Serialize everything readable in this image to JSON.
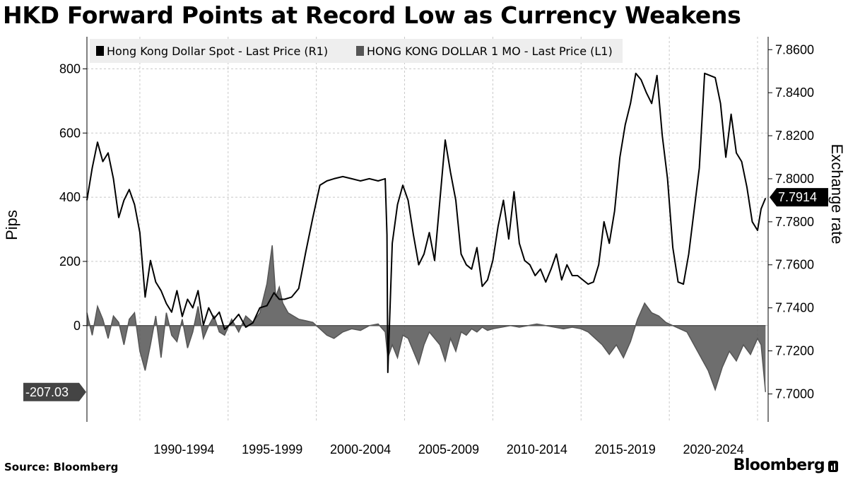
{
  "title": "HKD Forward Points at Record Low as Currency Weakens",
  "source": "Source: Bloomberg",
  "logo": "Bloomberg",
  "colors": {
    "spot": "#000000",
    "forward": "#555555",
    "grid": "#c8c8c8",
    "legend_bg": "#eeeeee"
  },
  "chart_data": {
    "type": "line",
    "legend": [
      {
        "name": "Hong Kong Dollar Spot - Last Price (R1)",
        "color": "#000000"
      },
      {
        "name": "HONG KONG DOLLAR 1 MO - Last Price (L1)",
        "color": "#555555"
      }
    ],
    "legend_position": "top-left",
    "grid": true,
    "x_range": [
      1987.0,
      2025.6
    ],
    "x_ticks": [
      {
        "label": "1990-1994",
        "start": 1990,
        "end": 1995
      },
      {
        "label": "1995-1999",
        "start": 1995,
        "end": 2000
      },
      {
        "label": "2000-2004",
        "start": 2000,
        "end": 2005
      },
      {
        "label": "2005-2009",
        "start": 2005,
        "end": 2010
      },
      {
        "label": "2010-2014",
        "start": 2010,
        "end": 2015
      },
      {
        "label": "2015-2019",
        "start": 2015,
        "end": 2020
      },
      {
        "label": "2020-2024",
        "start": 2020,
        "end": 2025
      }
    ],
    "left_axis": {
      "label": "Pips",
      "range": [
        -300,
        900
      ],
      "ticks": [
        "0",
        "200",
        "400",
        "600",
        "800"
      ],
      "tick_values": [
        0,
        200,
        400,
        600,
        800
      ]
    },
    "right_axis": {
      "label": "Exchange rate",
      "range": [
        7.687,
        7.866
      ],
      "ticks": [
        "7.7000",
        "7.7200",
        "7.7400",
        "7.7600",
        "7.7800",
        "7.8000",
        "7.8200",
        "7.8400",
        "7.8600"
      ],
      "tick_values": [
        7.7,
        7.72,
        7.74,
        7.76,
        7.78,
        7.8,
        7.82,
        7.84,
        7.86
      ]
    },
    "last_value_labels": {
      "spot": "7.7914",
      "forward": "-207.03"
    },
    "last_values": {
      "spot": 7.7914,
      "forward": -207.03
    },
    "series": [
      {
        "name": "Hong Kong Dollar Spot - Last Price (R1)",
        "axis": "right",
        "x": [
          1987.0,
          1987.3,
          1987.6,
          1987.9,
          1988.2,
          1988.5,
          1988.8,
          1989.1,
          1989.4,
          1989.7,
          1990.0,
          1990.3,
          1990.6,
          1990.9,
          1991.2,
          1991.5,
          1991.8,
          1992.1,
          1992.4,
          1992.7,
          1993.0,
          1993.3,
          1993.6,
          1993.9,
          1994.2,
          1994.5,
          1994.8,
          1995.2,
          1995.6,
          1996.0,
          1996.4,
          1996.8,
          1997.2,
          1997.6,
          1997.9,
          1998.2,
          1998.6,
          1999.0,
          1999.4,
          1999.8,
          2000.2,
          2000.6,
          2001.0,
          2001.5,
          2002.0,
          2002.5,
          2003.0,
          2003.5,
          2003.9,
          2004.0,
          2004.05,
          2004.3,
          2004.6,
          2004.9,
          2005.2,
          2005.5,
          2005.8,
          2006.1,
          2006.4,
          2006.7,
          2007.0,
          2007.3,
          2007.6,
          2007.9,
          2008.2,
          2008.5,
          2008.8,
          2009.1,
          2009.4,
          2009.7,
          2010.0,
          2010.3,
          2010.6,
          2010.9,
          2011.2,
          2011.5,
          2011.8,
          2012.1,
          2012.4,
          2012.7,
          2013.0,
          2013.3,
          2013.6,
          2013.9,
          2014.2,
          2014.5,
          2014.8,
          2015.1,
          2015.4,
          2015.7,
          2016.0,
          2016.3,
          2016.6,
          2016.9,
          2017.2,
          2017.5,
          2017.8,
          2018.1,
          2018.4,
          2018.7,
          2019.0,
          2019.3,
          2019.6,
          2019.9,
          2020.2,
          2020.5,
          2020.8,
          2021.1,
          2021.4,
          2021.7,
          2022.0,
          2022.3,
          2022.6,
          2022.9,
          2023.2,
          2023.5,
          2023.8,
          2024.1,
          2024.4,
          2024.7,
          2025.0,
          2025.2,
          2025.45
        ],
        "y": [
          7.79,
          7.805,
          7.817,
          7.808,
          7.812,
          7.8,
          7.782,
          7.79,
          7.795,
          7.788,
          7.775,
          7.745,
          7.762,
          7.752,
          7.748,
          7.742,
          7.738,
          7.748,
          7.736,
          7.744,
          7.74,
          7.748,
          7.732,
          7.74,
          7.735,
          7.738,
          7.73,
          7.733,
          7.737,
          7.731,
          7.733,
          7.74,
          7.741,
          7.747,
          7.744,
          7.744,
          7.745,
          7.749,
          7.766,
          7.782,
          7.797,
          7.799,
          7.8,
          7.801,
          7.8,
          7.799,
          7.8,
          7.799,
          7.8,
          7.774,
          7.71,
          7.77,
          7.788,
          7.797,
          7.79,
          7.774,
          7.76,
          7.765,
          7.775,
          7.762,
          7.79,
          7.818,
          7.803,
          7.79,
          7.765,
          7.76,
          7.758,
          7.768,
          7.75,
          7.753,
          7.762,
          7.778,
          7.79,
          7.772,
          7.794,
          7.77,
          7.762,
          7.76,
          7.755,
          7.758,
          7.752,
          7.758,
          7.765,
          7.753,
          7.76,
          7.755,
          7.755,
          7.753,
          7.751,
          7.752,
          7.76,
          7.78,
          7.77,
          7.785,
          7.81,
          7.825,
          7.835,
          7.849,
          7.846,
          7.84,
          7.835,
          7.848,
          7.82,
          7.8,
          7.768,
          7.752,
          7.751,
          7.765,
          7.785,
          7.805,
          7.849,
          7.848,
          7.847,
          7.835,
          7.81,
          7.83,
          7.812,
          7.808,
          7.796,
          7.78,
          7.776,
          7.786,
          7.791
        ]
      },
      {
        "name": "HONG KONG DOLLAR 1 MO - Last Price (L1)",
        "axis": "left",
        "x": [
          1987.0,
          1987.3,
          1987.6,
          1987.9,
          1988.2,
          1988.5,
          1988.8,
          1989.1,
          1989.4,
          1989.7,
          1990.0,
          1990.3,
          1990.6,
          1990.9,
          1991.2,
          1991.5,
          1991.8,
          1992.1,
          1992.4,
          1992.7,
          1993.0,
          1993.3,
          1993.6,
          1993.9,
          1994.2,
          1994.5,
          1994.8,
          1995.2,
          1995.6,
          1996.0,
          1996.4,
          1996.8,
          1997.2,
          1997.5,
          1997.7,
          1997.9,
          1998.1,
          1998.4,
          1998.7,
          1999.0,
          1999.4,
          1999.8,
          2000.2,
          2000.6,
          2001.0,
          2001.5,
          2002.0,
          2002.5,
          2003.0,
          2003.5,
          2003.9,
          2004.05,
          2004.3,
          2004.6,
          2004.9,
          2005.2,
          2005.5,
          2005.8,
          2006.1,
          2006.4,
          2006.7,
          2007.0,
          2007.3,
          2007.6,
          2007.9,
          2008.2,
          2008.5,
          2008.8,
          2009.1,
          2009.4,
          2009.7,
          2010.0,
          2010.5,
          2011.0,
          2011.5,
          2012.0,
          2012.5,
          2013.0,
          2013.5,
          2014.0,
          2014.5,
          2015.0,
          2015.4,
          2015.8,
          2016.2,
          2016.6,
          2017.0,
          2017.4,
          2017.8,
          2018.2,
          2018.6,
          2019.0,
          2019.4,
          2019.8,
          2020.2,
          2020.6,
          2021.0,
          2021.4,
          2021.8,
          2022.2,
          2022.6,
          2023.0,
          2023.4,
          2023.8,
          2024.2,
          2024.6,
          2025.0,
          2025.2,
          2025.45
        ],
        "y": [
          40,
          -30,
          60,
          20,
          -40,
          30,
          10,
          -60,
          20,
          40,
          -80,
          -140,
          -60,
          30,
          -100,
          40,
          -30,
          -50,
          20,
          -70,
          -20,
          60,
          -40,
          0,
          30,
          -20,
          -30,
          20,
          -20,
          30,
          10,
          40,
          130,
          250,
          90,
          120,
          70,
          40,
          30,
          20,
          15,
          10,
          -10,
          -30,
          -40,
          -20,
          -10,
          -15,
          0,
          5,
          -20,
          -100,
          -60,
          -100,
          -30,
          -40,
          -80,
          -120,
          -60,
          -20,
          -40,
          -60,
          -110,
          -40,
          -80,
          -20,
          -30,
          -10,
          -20,
          -5,
          -15,
          -10,
          -5,
          0,
          -5,
          0,
          5,
          0,
          -5,
          -10,
          -5,
          -10,
          -20,
          -40,
          -60,
          -90,
          -60,
          -100,
          -50,
          20,
          70,
          40,
          30,
          10,
          0,
          -10,
          -20,
          -60,
          -100,
          -140,
          -200,
          -130,
          -80,
          -110,
          -60,
          -90,
          -40,
          -60,
          -207
        ]
      }
    ]
  }
}
